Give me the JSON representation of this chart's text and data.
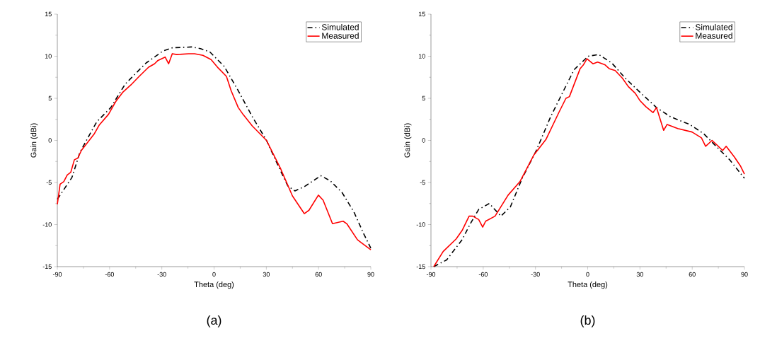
{
  "chart_data": [
    {
      "type": "line",
      "title": "(a)",
      "xlabel": "Theta (deg)",
      "ylabel": "Gain (dBi)",
      "xlim": [
        -90,
        90
      ],
      "ylim": [
        -15,
        15
      ],
      "xticks": [
        -90,
        -60,
        -30,
        0,
        30,
        60,
        90
      ],
      "yticks": [
        -15,
        -10,
        -5,
        0,
        5,
        10,
        15
      ],
      "grid": false,
      "legend": "top right",
      "series": [
        {
          "name": "Simulated",
          "color": "#000000",
          "line_style": "dashdot",
          "x": [
            -90,
            -81.6,
            -77,
            -67.4,
            -59.3,
            -51,
            -39,
            -29.5,
            -24,
            -13,
            -7.8,
            -2.4,
            5.8,
            13.9,
            22,
            30.1,
            37,
            42.3,
            46.4,
            51.8,
            61.3,
            66.7,
            73.5,
            80.3,
            85.7,
            90
          ],
          "values": [
            -7.0,
            -4.4,
            -1.4,
            2.2,
            3.9,
            6.7,
            9.2,
            10.6,
            11.0,
            11.1,
            10.9,
            10.5,
            8.8,
            5.9,
            2.8,
            0,
            -3.1,
            -5.4,
            -6.0,
            -5.5,
            -4.2,
            -4.8,
            -6.2,
            -8.5,
            -11.0,
            -12.8
          ]
        },
        {
          "name": "Measured",
          "color": "#ff0000",
          "line_style": "solid",
          "x": [
            -90,
            -88.4,
            -86.3,
            -84.3,
            -82.3,
            -80.2,
            -78.2,
            -76.2,
            -72.8,
            -68.7,
            -66,
            -60.6,
            -56.5,
            -52.5,
            -47.7,
            -43,
            -37.6,
            -34.2,
            -32.2,
            -28.1,
            -26.1,
            -24,
            -21.3,
            -14.6,
            -11.2,
            -6.4,
            -1.7,
            2.4,
            7.1,
            9.8,
            13.9,
            16.6,
            22,
            30.1,
            38.3,
            45,
            51.8,
            54.5,
            59.9,
            62.6,
            68,
            74.1,
            76.2,
            82.3,
            90
          ],
          "values": [
            -7.6,
            -5.2,
            -4.9,
            -4.1,
            -3.8,
            -2.3,
            -2.1,
            -1.2,
            -0.3,
            0.8,
            1.8,
            3.1,
            4.6,
            5.7,
            6.6,
            7.6,
            8.7,
            9.1,
            9.5,
            9.9,
            9.1,
            10.3,
            10.2,
            10.3,
            10.3,
            10.1,
            9.6,
            8.6,
            7.6,
            5.9,
            3.9,
            3.1,
            1.7,
            0,
            -3.4,
            -6.6,
            -8.7,
            -8.3,
            -6.5,
            -7.1,
            -9.9,
            -9.6,
            -9.9,
            -11.8,
            -13.0
          ]
        }
      ]
    },
    {
      "type": "line",
      "title": "(b)",
      "xlabel": "Theta (deg)",
      "ylabel": "Gain (dBi)",
      "xlim": [
        -90,
        90
      ],
      "ylim": [
        -15,
        15
      ],
      "xticks": [
        -90,
        -60,
        -30,
        0,
        30,
        60,
        90
      ],
      "yticks": [
        -15,
        -10,
        -5,
        0,
        5,
        10,
        15
      ],
      "grid": false,
      "legend": "top right",
      "series": [
        {
          "name": "Simulated",
          "color": "#000000",
          "line_style": "dashdot",
          "x": [
            -88.4,
            -81,
            -72.1,
            -67.4,
            -62.6,
            -56.5,
            -49.8,
            -44.4,
            -37.6,
            -29.5,
            -21.3,
            -14.6,
            -7.8,
            0.3,
            6.4,
            13.8,
            22,
            30.1,
            39.5,
            47.6,
            58.5,
            66.6,
            74.7,
            81.5,
            90
          ],
          "values": [
            -15,
            -14.2,
            -11.8,
            -9.9,
            -8.2,
            -7.5,
            -9.0,
            -7.9,
            -4.5,
            -1.2,
            2.8,
            5.6,
            8.4,
            10,
            10.2,
            9.2,
            7.3,
            5.7,
            3.9,
            2.8,
            1.9,
            0.8,
            -0.9,
            -2.3,
            -4.5
          ]
        },
        {
          "name": "Measured",
          "color": "#ff0000",
          "line_style": "solid",
          "x": [
            -88.4,
            -83,
            -75.5,
            -72.1,
            -68.1,
            -66,
            -62.6,
            -60.3,
            -58.6,
            -53.2,
            -45.7,
            -38.9,
            -30.8,
            -24,
            -16.6,
            -12.5,
            -10.5,
            -4.4,
            -2.4,
            -0.4,
            3,
            5.7,
            9.8,
            12.5,
            15.8,
            19.9,
            23.3,
            27.3,
            30.1,
            33.4,
            37.5,
            39.5,
            43.6,
            45.6,
            51.7,
            59.9,
            65.3,
            67.7,
            71.4,
            77.5,
            79.5,
            84.3,
            87.6,
            90
          ],
          "values": [
            -15,
            -13.2,
            -11.7,
            -10.7,
            -9.0,
            -9.0,
            -9.4,
            -10.3,
            -9.6,
            -9.0,
            -6.5,
            -4.9,
            -1.7,
            0.1,
            3.3,
            5.0,
            5.2,
            8.5,
            9.0,
            9.7,
            9.1,
            9.3,
            9.0,
            8.5,
            8.3,
            7.4,
            6.4,
            5.6,
            4.7,
            4.0,
            3.3,
            3.9,
            1.2,
            1.9,
            1.4,
            1.0,
            0.3,
            -0.7,
            0,
            -1.2,
            -0.7,
            -2.0,
            -3.0,
            -4.0
          ]
        }
      ]
    }
  ]
}
